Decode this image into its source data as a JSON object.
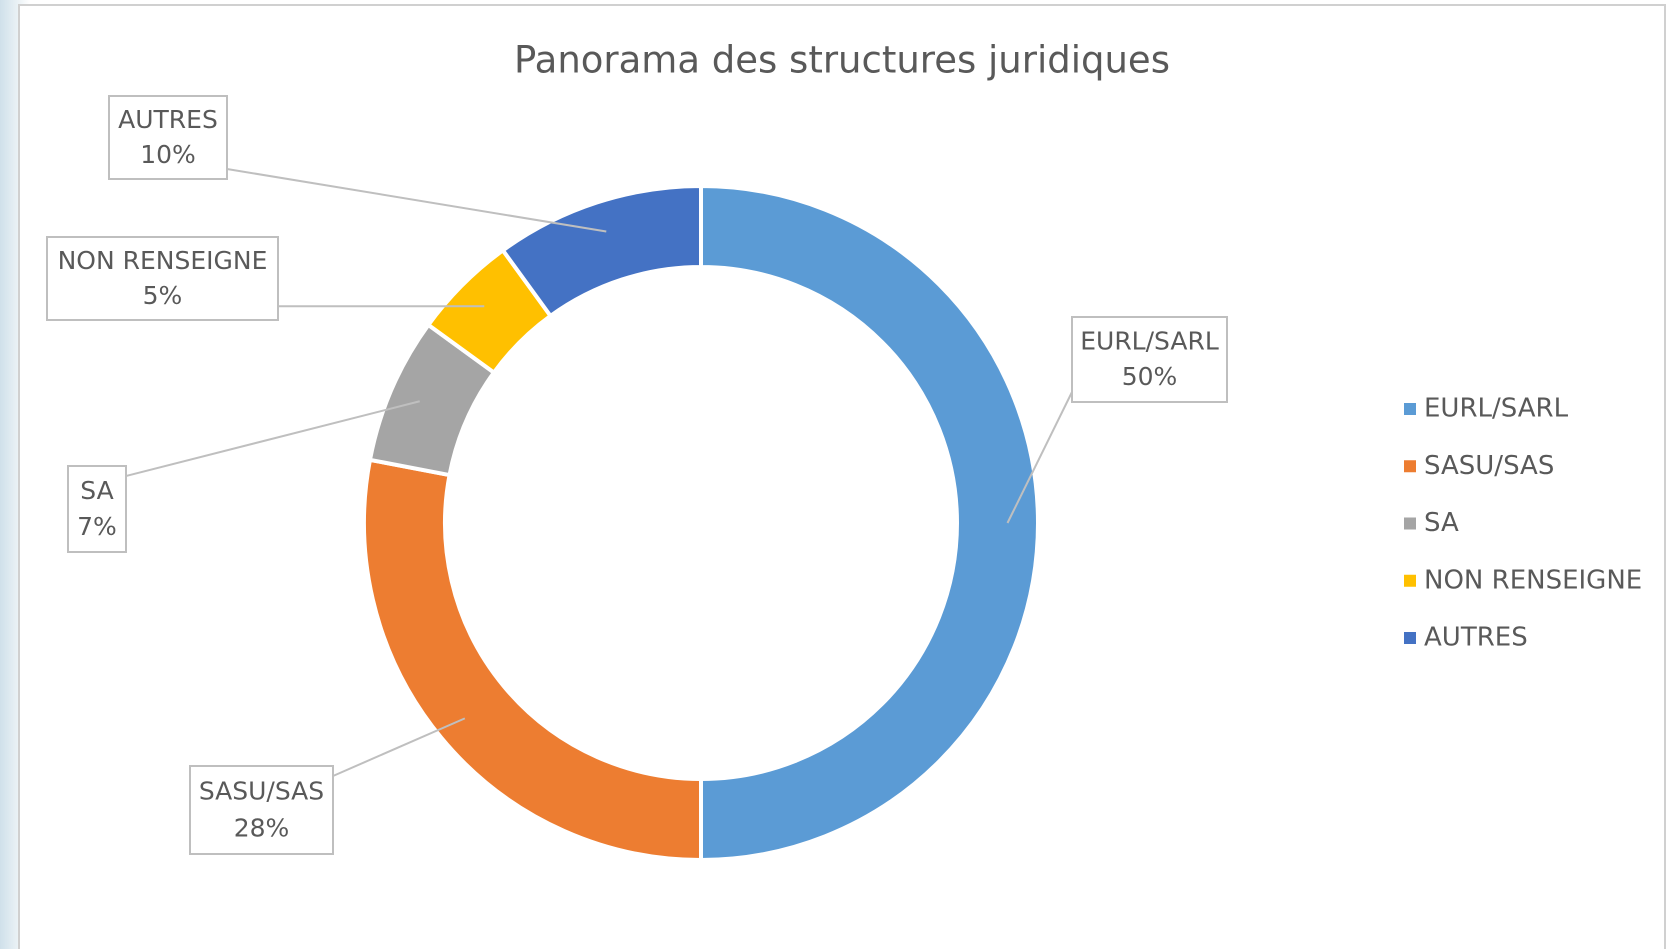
{
  "chart_data": {
    "type": "donut",
    "title": "Panorama des structures juridiques",
    "categories": [
      "EURL/SARL",
      "SASU/SAS",
      "SA",
      "NON RENSEIGNE",
      "AUTRES"
    ],
    "values": [
      50,
      28,
      7,
      5,
      10
    ],
    "value_labels": [
      "50%",
      "28%",
      "7%",
      "5%",
      "10%"
    ],
    "colors": [
      "#5b9bd5",
      "#ed7d31",
      "#a5a5a5",
      "#ffc000",
      "#4472c4"
    ],
    "legend": "right"
  }
}
